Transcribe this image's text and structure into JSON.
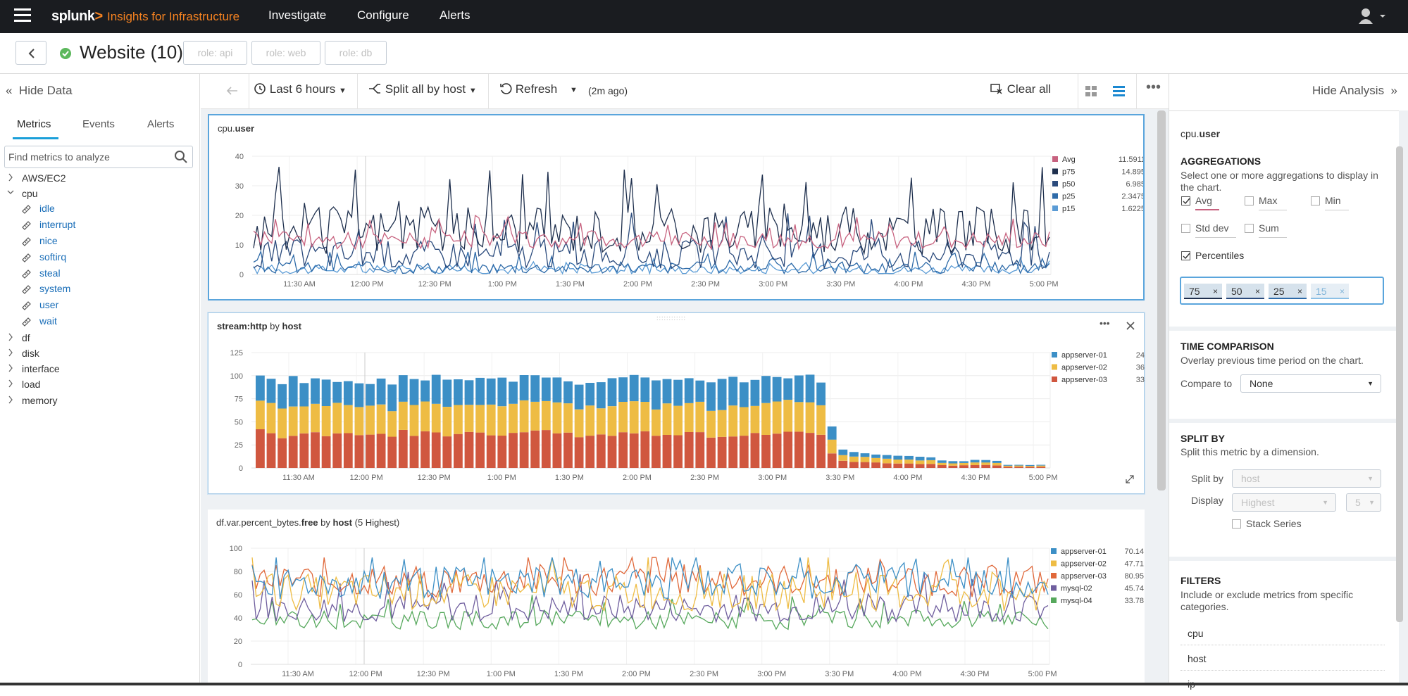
{
  "topbar": {
    "brand": "splunk",
    "brand_mark": ">",
    "product": "Insights for Infrastructure",
    "nav": [
      "Investigate",
      "Configure",
      "Alerts"
    ]
  },
  "header": {
    "title": "Website (10)",
    "roles": [
      "role: api",
      "role: web",
      "role: db"
    ]
  },
  "left": {
    "hide_label": "Hide Data",
    "tabs": [
      "Metrics",
      "Events",
      "Alerts"
    ],
    "search_placeholder": "Find metrics to analyze",
    "tree": [
      {
        "label": "AWS/EC2",
        "expanded": false
      },
      {
        "label": "cpu",
        "expanded": true,
        "children": [
          "idle",
          "interrupt",
          "nice",
          "softirq",
          "steal",
          "system",
          "user",
          "wait"
        ]
      },
      {
        "label": "df",
        "expanded": false
      },
      {
        "label": "disk",
        "expanded": false
      },
      {
        "label": "interface",
        "expanded": false
      },
      {
        "label": "load",
        "expanded": false
      },
      {
        "label": "memory",
        "expanded": false
      }
    ]
  },
  "toolbar": {
    "time": "Last 6 hours",
    "split": "Split all by host",
    "refresh": "Refresh",
    "refresh_age": "(2m ago)",
    "clear": "Clear all"
  },
  "right": {
    "hide_label": "Hide Analysis",
    "metric_prefix": "cpu.",
    "metric_name": "user",
    "aggregations": {
      "title": "AGGREGATIONS",
      "desc": "Select one or more aggregations to display in the chart.",
      "options": [
        {
          "label": "Avg",
          "checked": true
        },
        {
          "label": "Max",
          "checked": false
        },
        {
          "label": "Min",
          "checked": false
        },
        {
          "label": "Std dev",
          "checked": false
        },
        {
          "label": "Sum",
          "checked": false
        }
      ],
      "percentiles_label": "Percentiles",
      "percentiles_checked": true,
      "chips": [
        "75",
        "50",
        "25",
        "15"
      ]
    },
    "time_comparison": {
      "title": "TIME COMPARISON",
      "desc": "Overlay previous time period on the chart.",
      "label": "Compare to",
      "value": "None"
    },
    "split_by": {
      "title": "SPLIT BY",
      "desc": "Split this metric by a dimension.",
      "split_label": "Split by",
      "split_value": "host",
      "display_label": "Display",
      "display_value": "Highest",
      "display_count": "5",
      "stack_label": "Stack Series"
    },
    "filters": {
      "title": "FILTERS",
      "desc": "Include or exclude metrics from specific categories.",
      "items": [
        "cpu",
        "host",
        "ip"
      ]
    }
  },
  "chart_data": [
    {
      "type": "line",
      "title_prefix": "cpu.",
      "title_bold": "user",
      "x_ticks": [
        "11:30 AM",
        "12:00 PM",
        "12:30 PM",
        "1:00 PM",
        "1:30 PM",
        "2:00 PM",
        "2:30 PM",
        "3:00 PM",
        "3:30 PM",
        "4:00 PM",
        "4:30 PM",
        "5:00 PM"
      ],
      "y_ticks": [
        0,
        10,
        20,
        30,
        40
      ],
      "ylim": [
        0,
        40
      ],
      "series": [
        {
          "name": "Avg",
          "value": "11.5911",
          "color": "#c7627f",
          "base": 11.6,
          "spread": 3
        },
        {
          "name": "p75",
          "value": "14.895",
          "color": "#1e2f4d",
          "base": 14.9,
          "spread": 8
        },
        {
          "name": "p50",
          "value": "6.985",
          "color": "#2a4a7c",
          "base": 7.0,
          "spread": 5
        },
        {
          "name": "p25",
          "value": "2.3475",
          "color": "#2d6aa8",
          "base": 2.3,
          "spread": 2
        },
        {
          "name": "p15",
          "value": "1.6225",
          "color": "#5a9bd5",
          "base": 1.6,
          "spread": 1.5
        }
      ]
    },
    {
      "type": "bar",
      "stacked": true,
      "title_prefix": "stream:http",
      "title_by": "by",
      "title_bold": "host",
      "x_ticks": [
        "11:30 AM",
        "12:00 PM",
        "12:30 PM",
        "1:00 PM",
        "1:30 PM",
        "2:00 PM",
        "2:30 PM",
        "3:00 PM",
        "3:30 PM",
        "4:00 PM",
        "4:30 PM",
        "5:00 PM"
      ],
      "y_ticks": [
        0,
        25,
        50,
        75,
        100,
        125
      ],
      "ylim": [
        0,
        125
      ],
      "series": [
        {
          "name": "appserver-01",
          "value": "24",
          "color": "#3c8fc6"
        },
        {
          "name": "appserver-02",
          "value": "36",
          "color": "#eebc44"
        },
        {
          "name": "appserver-03",
          "value": "33",
          "color": "#d0573f"
        }
      ]
    },
    {
      "type": "line",
      "title_prefix": "df.var.percent_bytes.",
      "title_bold": "free",
      "title_by": "by",
      "title_bold2": "host",
      "title_suffix": "(5 Highest)",
      "x_ticks": [
        "11:30 AM",
        "12:00 PM",
        "12:30 PM",
        "1:00 PM",
        "1:30 PM",
        "2:00 PM",
        "2:30 PM",
        "3:00 PM",
        "3:30 PM",
        "4:00 PM",
        "4:30 PM",
        "5:00 PM"
      ],
      "y_ticks": [
        0,
        20,
        40,
        60,
        80,
        100
      ],
      "ylim": [
        0,
        100
      ],
      "series": [
        {
          "name": "appserver-01",
          "value": "70.14",
          "color": "#3c8fc6",
          "base": 70,
          "spread": 14
        },
        {
          "name": "appserver-02",
          "value": "47.71",
          "color": "#eebc44",
          "base": 62,
          "spread": 16
        },
        {
          "name": "appserver-03",
          "value": "80.95",
          "color": "#e0683a",
          "base": 72,
          "spread": 14
        },
        {
          "name": "mysql-02",
          "value": "45.74",
          "color": "#6f5e9e",
          "base": 48,
          "spread": 12
        },
        {
          "name": "mysql-04",
          "value": "33.78",
          "color": "#56a85c",
          "base": 38,
          "spread": 8
        }
      ]
    }
  ]
}
